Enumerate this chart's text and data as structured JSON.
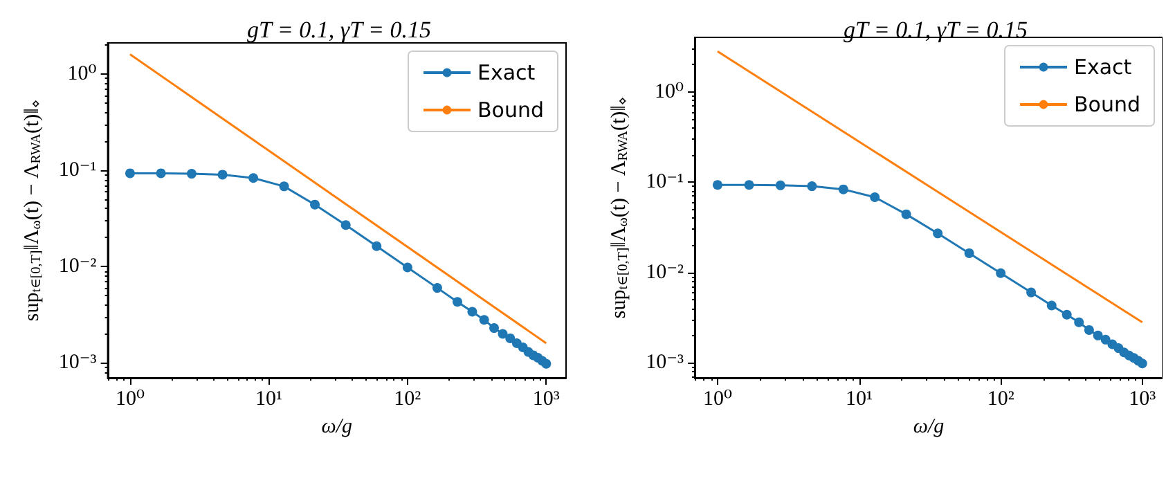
{
  "chart_data": [
    {
      "type": "line",
      "title": "gT = 0.1, γT = 0.15",
      "xlabel": "ω/g",
      "ylabel": "sup$_{t∈[0,T]}$‖Λ$_{ω}$(t) − Λ$_{RWA}$(t)‖$_{⋄}$",
      "log": "xy",
      "grid": false,
      "legend": "top right",
      "xlim": [
        0.69,
        1390
      ],
      "xticks": [
        {
          "value": 1,
          "label": "10⁰"
        },
        {
          "value": 10,
          "label": "10¹"
        },
        {
          "value": 100,
          "label": "10²"
        },
        {
          "value": 1000,
          "label": "10³"
        }
      ],
      "ylim": [
        0.0007,
        2.1
      ],
      "yticks": [
        {
          "value": 0.001,
          "label": "10⁻³"
        },
        {
          "value": 0.01,
          "label": "10⁻²"
        },
        {
          "value": 0.1,
          "label": "10⁻¹"
        },
        {
          "value": 1,
          "label": "10⁰"
        }
      ],
      "series": [
        {
          "name": "Exact",
          "color": "#1f77b4",
          "marker": "circle",
          "x": [
            1,
            1.67,
            2.78,
            4.64,
            7.74,
            12.9,
            21.5,
            35.9,
            59.9,
            100,
            164,
            229,
            293,
            357,
            421,
            486,
            550,
            614,
            679,
            743,
            807,
            871,
            936,
            1000
          ],
          "values": [
            0.093,
            0.093,
            0.092,
            0.09,
            0.083,
            0.068,
            0.044,
            0.027,
            0.0163,
            0.0098,
            0.006,
            0.0043,
            0.0034,
            0.0028,
            0.0023,
            0.002,
            0.0018,
            0.0016,
            0.00145,
            0.0013,
            0.0012,
            0.00113,
            0.00105,
            0.00098
          ]
        },
        {
          "name": "Bound",
          "color": "#ff7f0e",
          "marker": "none",
          "x": [
            1,
            1000
          ],
          "values": [
            1.6,
            0.0016
          ]
        }
      ]
    },
    {
      "type": "line",
      "title": "gT = 0.1, γT = 0.15",
      "xlabel": "ω/g",
      "ylabel": "sup$_{t∈[0,T]}$‖Λ$_{ω}$(t) − Λ$_{RWA}$(t)‖$_{⋄}$",
      "log": "xy",
      "grid": false,
      "legend": "top right",
      "xlim": [
        0.69,
        1390
      ],
      "xticks": [
        {
          "value": 1,
          "label": "10⁰"
        },
        {
          "value": 10,
          "label": "10¹"
        },
        {
          "value": 100,
          "label": "10²"
        },
        {
          "value": 1000,
          "label": "10³"
        }
      ],
      "ylim": [
        0.00068,
        4.0
      ],
      "yticks": [
        {
          "value": 0.001,
          "label": "10⁻³"
        },
        {
          "value": 0.01,
          "label": "10⁻²"
        },
        {
          "value": 0.1,
          "label": "10⁻¹"
        },
        {
          "value": 1,
          "label": "10⁰"
        }
      ],
      "series": [
        {
          "name": "Exact",
          "color": "#1f77b4",
          "marker": "circle",
          "x": [
            1,
            1.67,
            2.78,
            4.64,
            7.74,
            12.9,
            21.5,
            35.9,
            59.9,
            100,
            164,
            229,
            293,
            357,
            421,
            486,
            550,
            614,
            679,
            743,
            807,
            871,
            936,
            1000
          ],
          "values": [
            0.093,
            0.093,
            0.092,
            0.09,
            0.083,
            0.068,
            0.044,
            0.027,
            0.0163,
            0.0098,
            0.006,
            0.0043,
            0.0034,
            0.0028,
            0.0023,
            0.002,
            0.0018,
            0.0016,
            0.00145,
            0.0013,
            0.0012,
            0.00113,
            0.00105,
            0.00098
          ]
        },
        {
          "name": "Bound",
          "color": "#ff7f0e",
          "marker": "none",
          "x": [
            1,
            1000
          ],
          "values": [
            2.8,
            0.0028
          ]
        }
      ]
    }
  ]
}
